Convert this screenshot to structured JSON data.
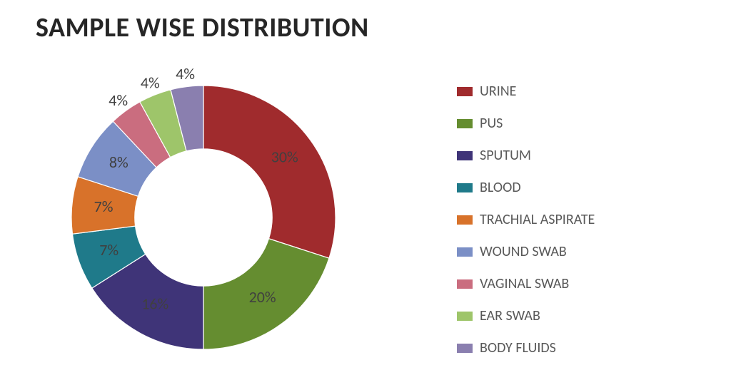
{
  "title": "SAMPLE WISE DISTRIBUTION",
  "title_fontsize": 38,
  "chart": {
    "type": "doughnut",
    "background_color": "#ffffff",
    "inner_radius_ratio": 0.52,
    "start_angle_deg": -90,
    "slices": [
      {
        "label": "URINE",
        "value": 30,
        "display": "30%",
        "color": "#a02b2d"
      },
      {
        "label": "PUS",
        "value": 20,
        "display": "20%",
        "color": "#658d30"
      },
      {
        "label": "SPUTUM",
        "value": 16,
        "display": "16%",
        "color": "#3f3478"
      },
      {
        "label": "BLOOD",
        "value": 7,
        "display": "7%",
        "color": "#1f7a8a"
      },
      {
        "label": "TRACHIAL ASPIRATE",
        "value": 7,
        "display": "7%",
        "color": "#d8722a"
      },
      {
        "label": "WOUND SWAB",
        "value": 8,
        "display": "8%",
        "color": "#7b8fc6"
      },
      {
        "label": "VAGINAL SWAB",
        "value": 4,
        "display": "4%",
        "color": "#ca6d7f"
      },
      {
        "label": "EAR SWAB",
        "value": 4,
        "display": "4%",
        "color": "#9ec56a"
      },
      {
        "label": "BODY FLUIDS",
        "value": 4,
        "display": "4%",
        "color": "#8a7faf"
      }
    ],
    "label_color": "#404040",
    "label_fontsize": 22,
    "legend_font_color": "#595959",
    "legend_fontsize": 20
  }
}
